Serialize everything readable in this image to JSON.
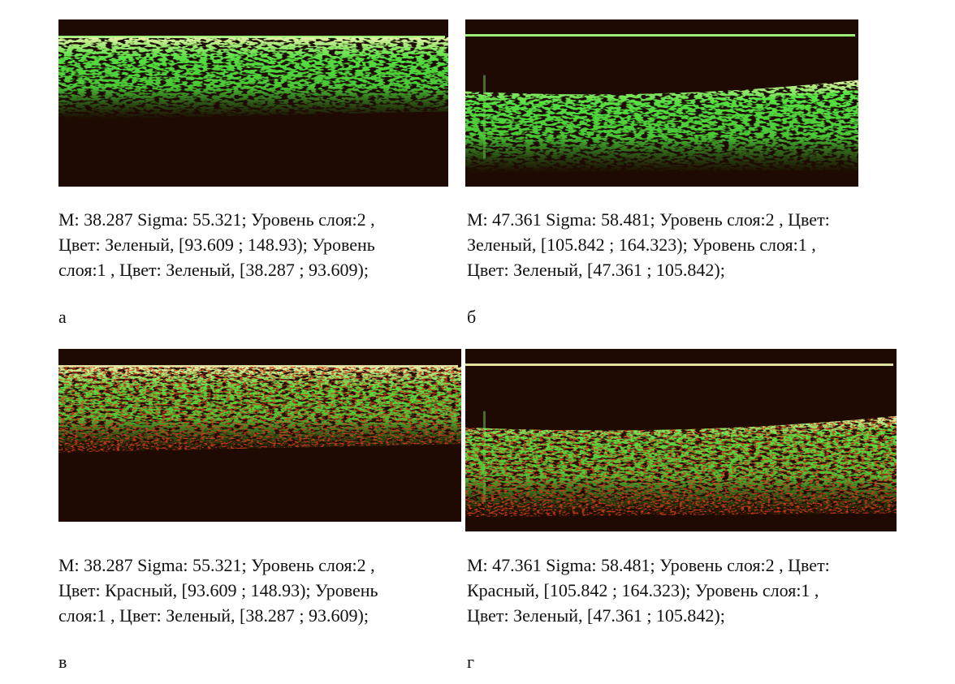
{
  "panels": [
    {
      "caption": [
        "M: 38.287 Sigma: 55.321; Уровень слоя:2 ,",
        "Цвет: Зеленый, [93.609 ; 148.93); Уровень",
        "слоя:1 , Цвет: Зеленый, [38.287 ; 93.609);"
      ],
      "label": "а"
    },
    {
      "caption": [
        "M: 47.361 Sigma: 58.481; Уровень слоя:2 , Цвет:",
        "Зеленый, [105.842 ; 164.323); Уровень слоя:1 ,",
        "Цвет: Зеленый, [47.361 ; 105.842);"
      ],
      "label": "б"
    },
    {
      "caption": [
        "M: 38.287 Sigma: 55.321; Уровень слоя:2 ,",
        "Цвет: Красный, [93.609 ; 148.93); Уровень",
        "слоя:1 , Цвет: Зеленый, [38.287 ; 93.609);"
      ],
      "label": "в"
    },
    {
      "caption": [
        "M: 47.361 Sigma: 58.481; Уровень слоя:2 , Цвет:",
        "Красный, [105.842 ; 164.323); Уровень слоя:1 ,",
        "Цвет: Зеленый, [47.361 ; 105.842);"
      ],
      "label": "г"
    }
  ]
}
